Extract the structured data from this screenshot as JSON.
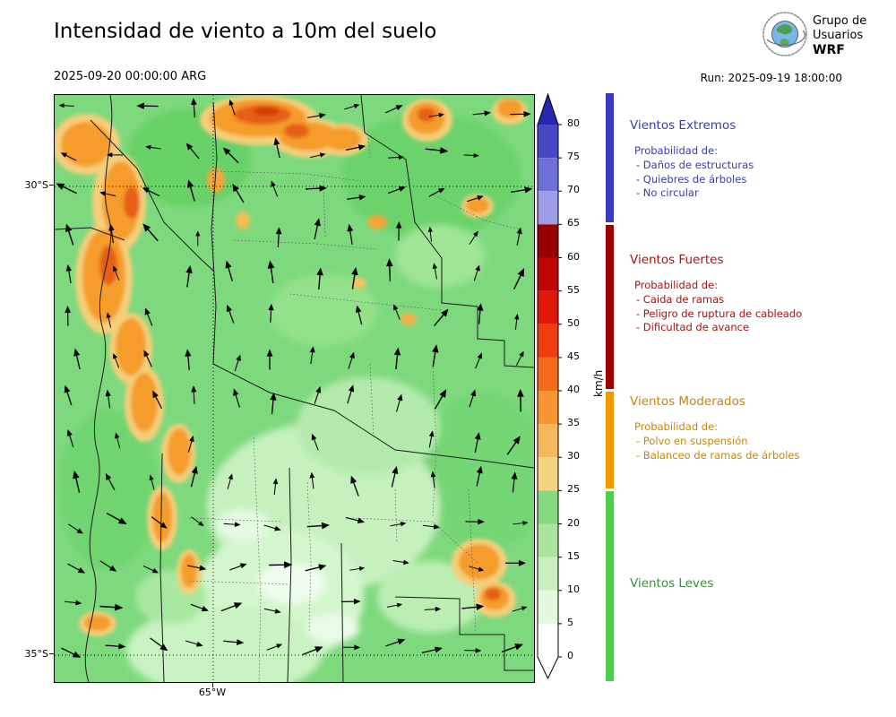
{
  "header": {
    "title": "Intensidad de viento a 10m del suelo",
    "valid_datetime": "2025-09-20 00:00:00 ARG",
    "run_label": "Run: 2025-09-19 18:00:00",
    "logo": {
      "line1": "Grupo de",
      "line2": "Usuarios",
      "line3": "WRF"
    }
  },
  "map": {
    "lat_labels": [
      "30°S",
      "35°S"
    ],
    "lon_label": "65°W"
  },
  "colorbar": {
    "unit": "km/h",
    "ticks": [
      80,
      75,
      70,
      65,
      60,
      55,
      50,
      45,
      40,
      35,
      30,
      25,
      20,
      15,
      10,
      5,
      0
    ],
    "colors": [
      "#ffffff",
      "#e4f8dc",
      "#c9efbe",
      "#a9e59d",
      "#86da7f",
      "#f6d47d",
      "#f6b85c",
      "#f79530",
      "#f56b1c",
      "#f13c0e",
      "#e01607",
      "#c00404",
      "#990000",
      "#9e9ee8",
      "#6f6fd8",
      "#4747c4"
    ],
    "over_color": "#2626ae",
    "under_color": "#ffffff"
  },
  "category_bar": {
    "extremos_color": "#3a3ac0",
    "fuertes_color": "#a00000",
    "moderados_color": "#f09a00",
    "leves_color": "#52cb52"
  },
  "legend": {
    "extremos": {
      "title": "Vientos Extremos",
      "color": "#3a3ab0",
      "subtitle": "Probabilidad de:",
      "items": [
        "- Daños de estructuras",
        "- Quiebres de árboles",
        "- No circular"
      ]
    },
    "fuertes": {
      "title": "Vientos Fuertes",
      "color": "#aa1111",
      "subtitle": "Probabilidad de:",
      "items": [
        "- Caida de ramas",
        "- Peligro de ruptura de cableado",
        "- Dificultad de avance"
      ]
    },
    "moderados": {
      "title": "Vientos Moderados",
      "color": "#c8860a",
      "subtitle": "Probabilidad de:",
      "items": [
        "- Polvo en suspensión",
        "- Balanceo de ramas de árboles"
      ]
    },
    "leves": {
      "title": "Vientos Leves",
      "color": "#3d8b3d"
    }
  }
}
